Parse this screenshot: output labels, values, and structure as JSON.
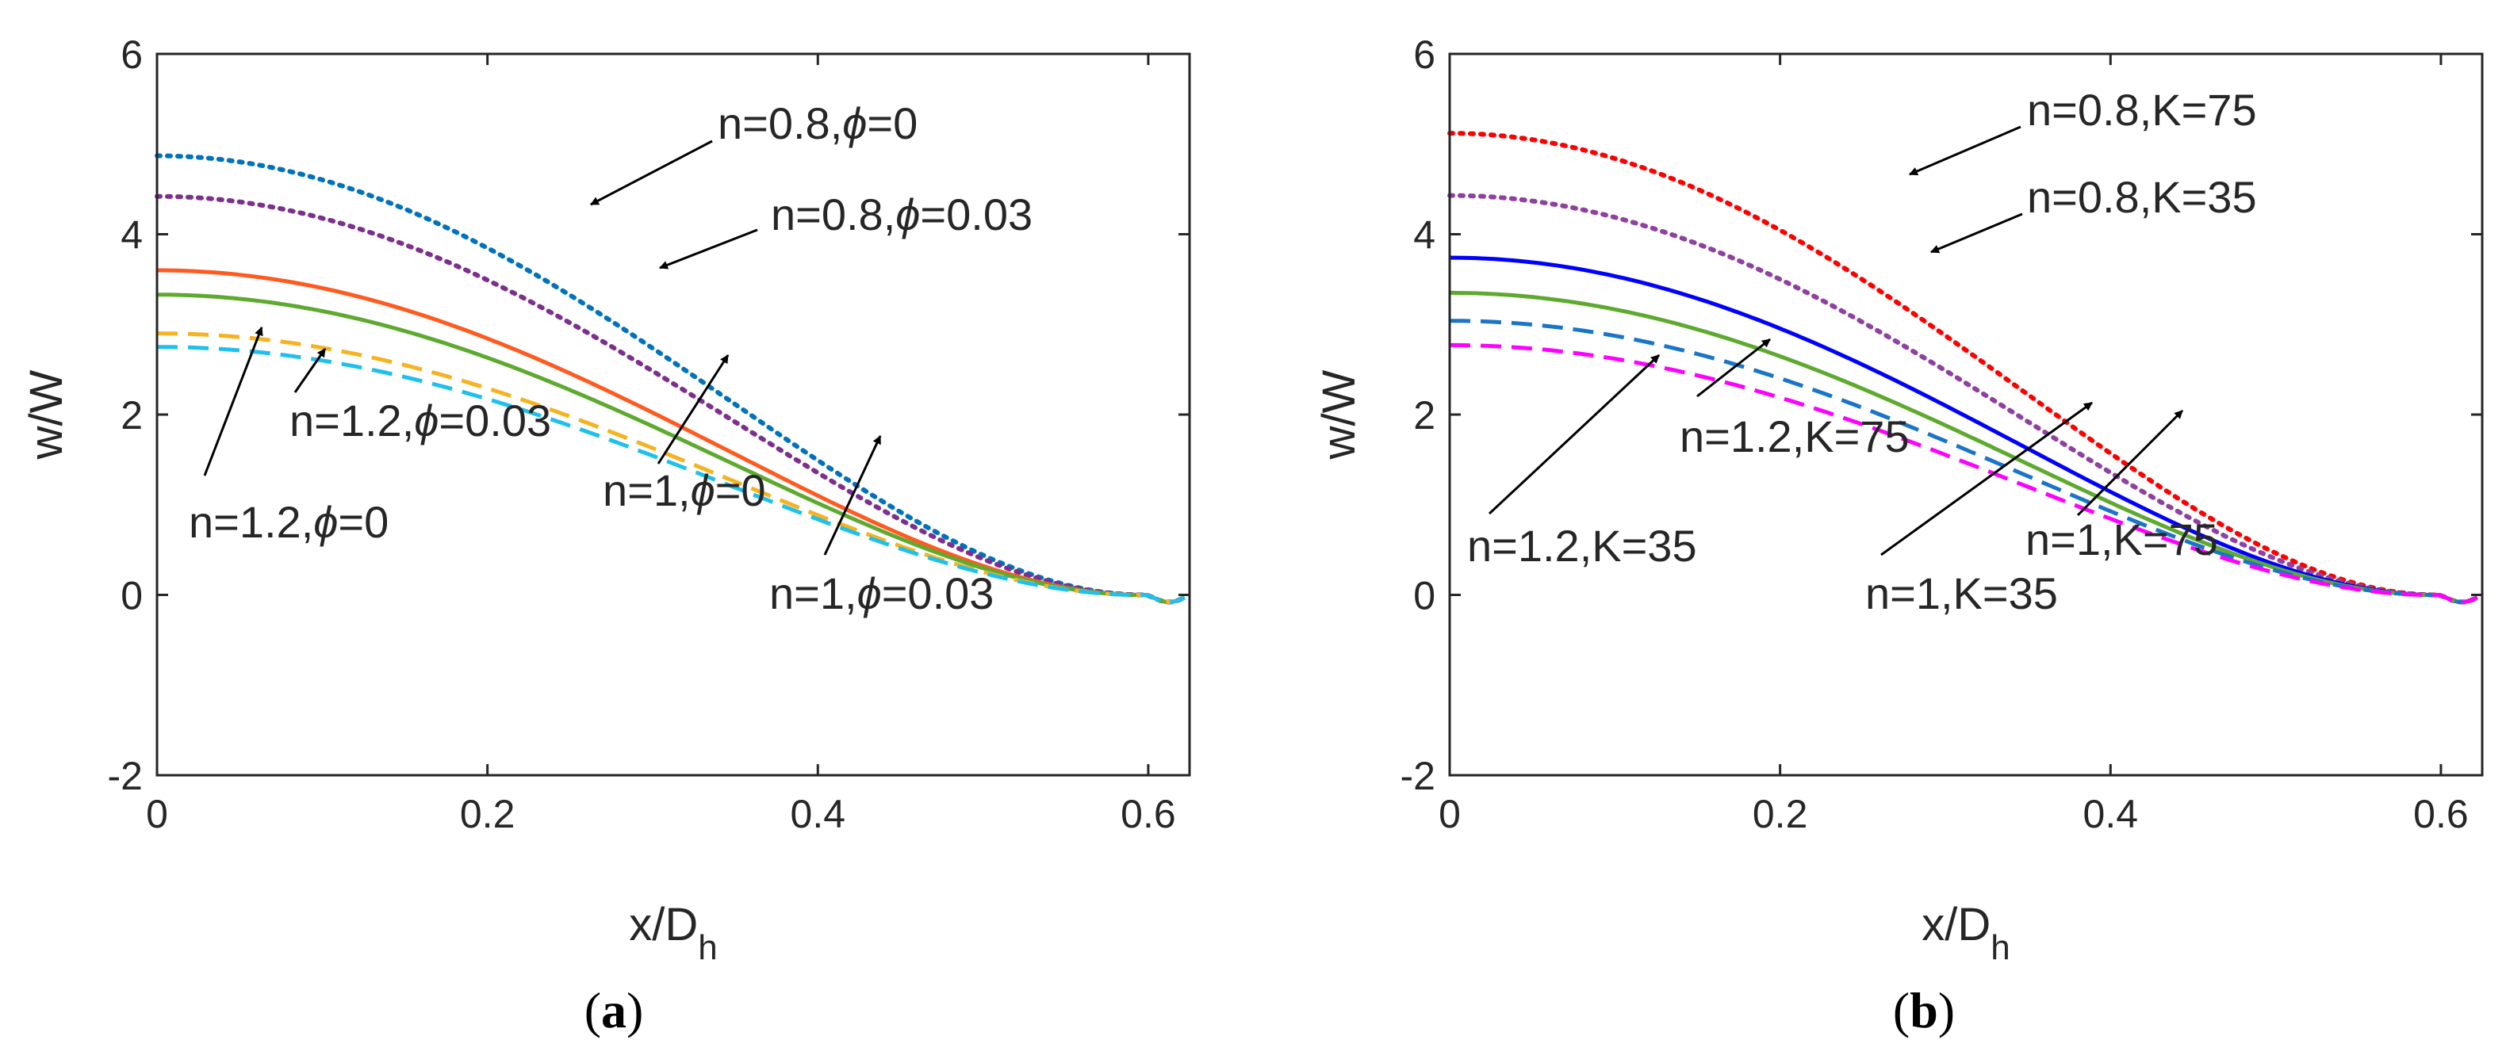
{
  "chart_data": [
    {
      "panel": "(a)",
      "panel_letter": "a",
      "type": "line",
      "xlabel": "x/D",
      "xlabel_sub": "h",
      "ylabel": "w/W",
      "xlim": [
        0,
        0.625
      ],
      "ylim": [
        -2,
        6
      ],
      "xticks": [
        0,
        0.2,
        0.4,
        0.6
      ],
      "xtick_labels": [
        "0",
        "0.2",
        "0.4",
        "0.6"
      ],
      "yticks": [
        -2,
        0,
        2,
        4,
        6
      ],
      "ytick_labels": [
        "-2",
        "0",
        "2",
        "4",
        "6"
      ],
      "series": [
        {
          "name": "n=0.8,ϕ=0",
          "n": "n=0.8,",
          "phi": "0",
          "color": "#0072BD",
          "style": "dotted",
          "y0": 4.87
        },
        {
          "name": "n=0.8,ϕ=0.03",
          "n": "n=0.8,",
          "phi": "0.03",
          "color": "#7E2F8E",
          "style": "dotted",
          "y0": 4.42
        },
        {
          "name": "n=1,ϕ=0",
          "n": "n=1,",
          "phi": "0",
          "color": "#FF5A1F",
          "style": "solid",
          "y0": 3.6
        },
        {
          "name": "n=1,ϕ=0.03",
          "n": "n=1,",
          "phi": "0.03",
          "color": "#5DAA2F",
          "style": "solid",
          "y0": 3.33
        },
        {
          "name": "n=1.2,ϕ=0.03",
          "n": "n=1.2,",
          "phi": "0.03",
          "color": "#F5B320",
          "style": "dashed",
          "y0": 2.9
        },
        {
          "name": "n=1.2,ϕ=0",
          "n": "n=1.2,",
          "phi": "0",
          "color": "#1EC0EE",
          "style": "dashed",
          "y0": 2.75
        }
      ]
    },
    {
      "panel": "(b)",
      "panel_letter": "b",
      "type": "line",
      "xlabel": "x/D",
      "xlabel_sub": "h",
      "ylabel": "w/W",
      "xlim": [
        0,
        0.625
      ],
      "ylim": [
        -2,
        6
      ],
      "xticks": [
        0,
        0.2,
        0.4,
        0.6
      ],
      "xtick_labels": [
        "0",
        "0.2",
        "0.4",
        "0.6"
      ],
      "yticks": [
        -2,
        0,
        2,
        4,
        6
      ],
      "ytick_labels": [
        "-2",
        "0",
        "2",
        "4",
        "6"
      ],
      "series": [
        {
          "name": "n=0.8,K=75",
          "color": "#FF0000",
          "style": "dotted",
          "y0": 5.12
        },
        {
          "name": "n=0.8,K=35",
          "color": "#9040A0",
          "style": "dotted",
          "y0": 4.43
        },
        {
          "name": "n=1,K=75",
          "color": "#0000FF",
          "style": "solid",
          "y0": 3.74
        },
        {
          "name": "n=1,K=35",
          "color": "#5DAA2F",
          "style": "solid",
          "y0": 3.35
        },
        {
          "name": "n=1.2,K=75",
          "color": "#1A75C8",
          "style": "dashed",
          "y0": 3.04
        },
        {
          "name": "n=1.2,K=35",
          "color": "#FF00FF",
          "style": "dashed",
          "y0": 2.77
        }
      ]
    }
  ]
}
